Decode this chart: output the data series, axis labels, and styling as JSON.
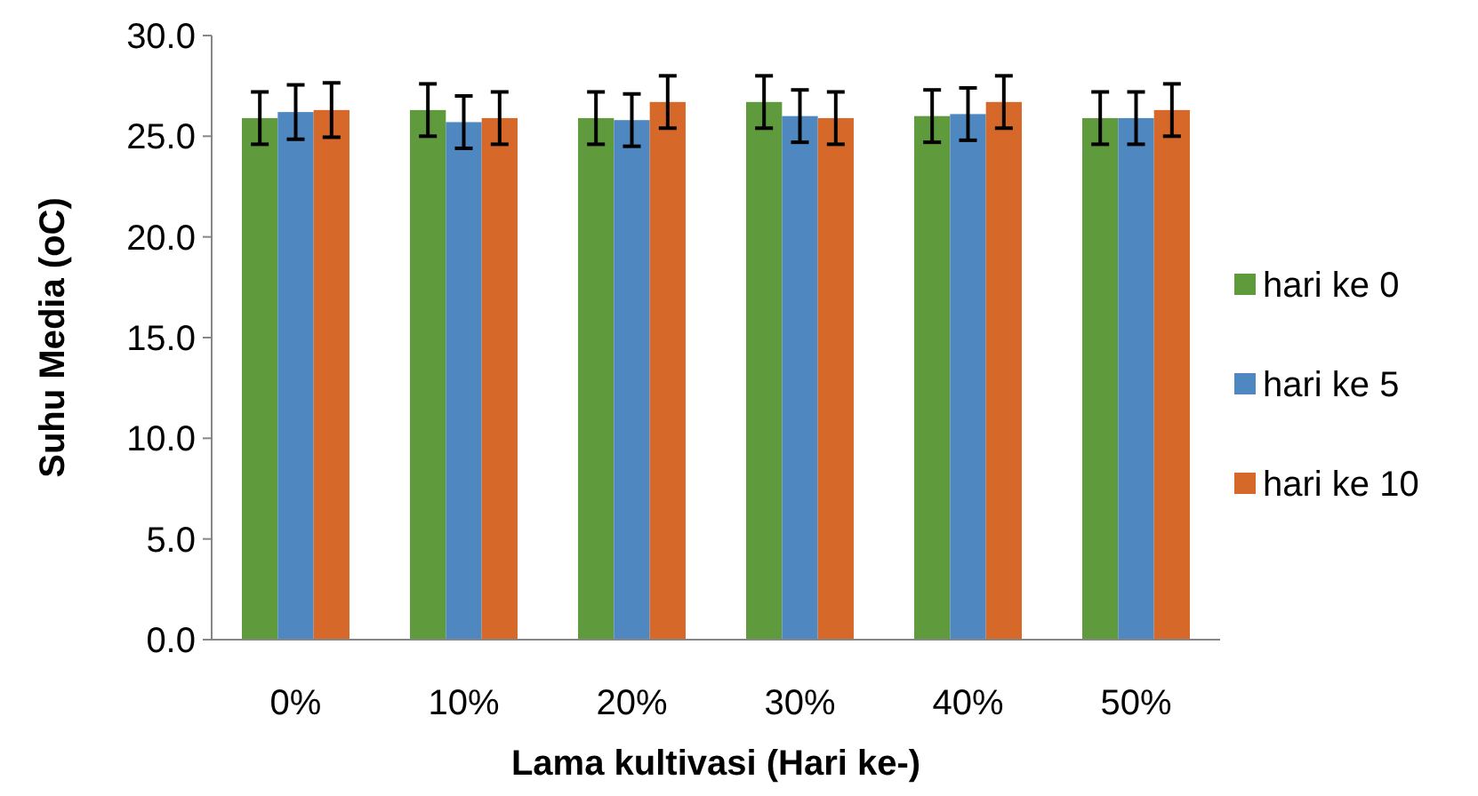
{
  "chart_data": {
    "type": "bar",
    "xlabel": "Lama kultivasi (Hari ke-)",
    "ylabel": "Suhu Media (oC)",
    "categories": [
      "0%",
      "10%",
      "20%",
      "30%",
      "40%",
      "50%"
    ],
    "series": [
      {
        "name": "hari ke 0",
        "color": "#5f9a3c",
        "values": [
          25.9,
          26.3,
          25.9,
          26.7,
          26.0,
          25.9
        ],
        "errors": [
          1.3,
          1.3,
          1.3,
          1.3,
          1.3,
          1.3
        ]
      },
      {
        "name": "hari ke 5",
        "color": "#4f88c0",
        "values": [
          26.2,
          25.7,
          25.8,
          26.0,
          26.1,
          25.9
        ],
        "errors": [
          1.35,
          1.3,
          1.3,
          1.3,
          1.3,
          1.3
        ]
      },
      {
        "name": "hari ke 10",
        "color": "#d6692a",
        "values": [
          26.3,
          25.9,
          26.7,
          25.9,
          26.7,
          26.3
        ],
        "errors": [
          1.35,
          1.3,
          1.3,
          1.3,
          1.3,
          1.3
        ]
      }
    ],
    "ylim": [
      0,
      30
    ],
    "yticks": [
      {
        "value": 0,
        "label": "0.0"
      },
      {
        "value": 5,
        "label": "5.0"
      },
      {
        "value": 10,
        "label": "10.0"
      },
      {
        "value": 15,
        "label": "15.0"
      },
      {
        "value": 20,
        "label": "20.0"
      },
      {
        "value": 25,
        "label": "25.0"
      },
      {
        "value": 30,
        "label": "30.0"
      }
    ],
    "grid": false,
    "legend": "right"
  }
}
